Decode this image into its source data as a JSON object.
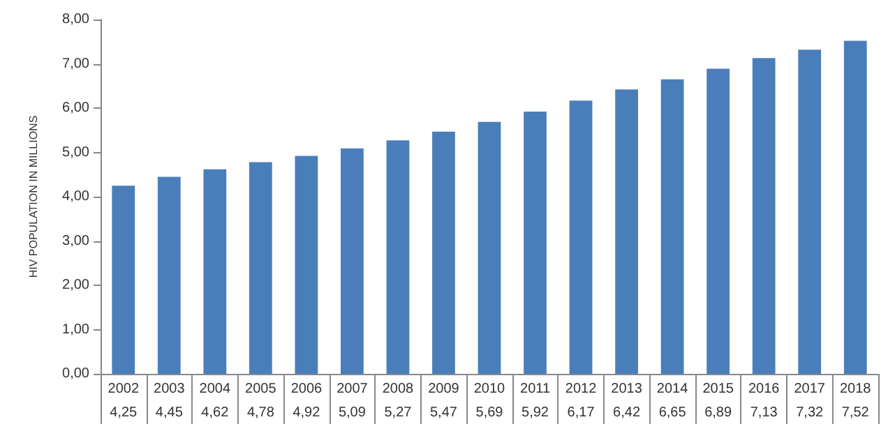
{
  "chart_data": {
    "type": "bar",
    "ylabel": "HIV POPULATION IN MILLIONS",
    "categories": [
      "2002",
      "2003",
      "2004",
      "2005",
      "2006",
      "2007",
      "2008",
      "2009",
      "2010",
      "2011",
      "2012",
      "2013",
      "2014",
      "2015",
      "2016",
      "2017",
      "2018"
    ],
    "values": [
      4.25,
      4.45,
      4.62,
      4.78,
      4.92,
      5.09,
      5.27,
      5.47,
      5.69,
      5.92,
      6.17,
      6.42,
      6.65,
      6.89,
      7.13,
      7.32,
      7.52
    ],
    "value_labels": [
      "4,25",
      "4,45",
      "4,62",
      "4,78",
      "4,92",
      "5,09",
      "5,27",
      "5,47",
      "5,69",
      "5,92",
      "6,17",
      "6,42",
      "6,65",
      "6,89",
      "7,13",
      "7,32",
      "7,52"
    ],
    "color": "#4a7ebb",
    "ylim": [
      0,
      8
    ],
    "yticks": [
      {
        "value": 0,
        "label": "0,00"
      },
      {
        "value": 1,
        "label": "1,00"
      },
      {
        "value": 2,
        "label": "2,00"
      },
      {
        "value": 3,
        "label": "3,00"
      },
      {
        "value": 4,
        "label": "4,00"
      },
      {
        "value": 5,
        "label": "5,00"
      },
      {
        "value": 6,
        "label": "6,00"
      },
      {
        "value": 7,
        "label": "7,00"
      },
      {
        "value": 8,
        "label": "8,00"
      }
    ],
    "grid": false
  }
}
